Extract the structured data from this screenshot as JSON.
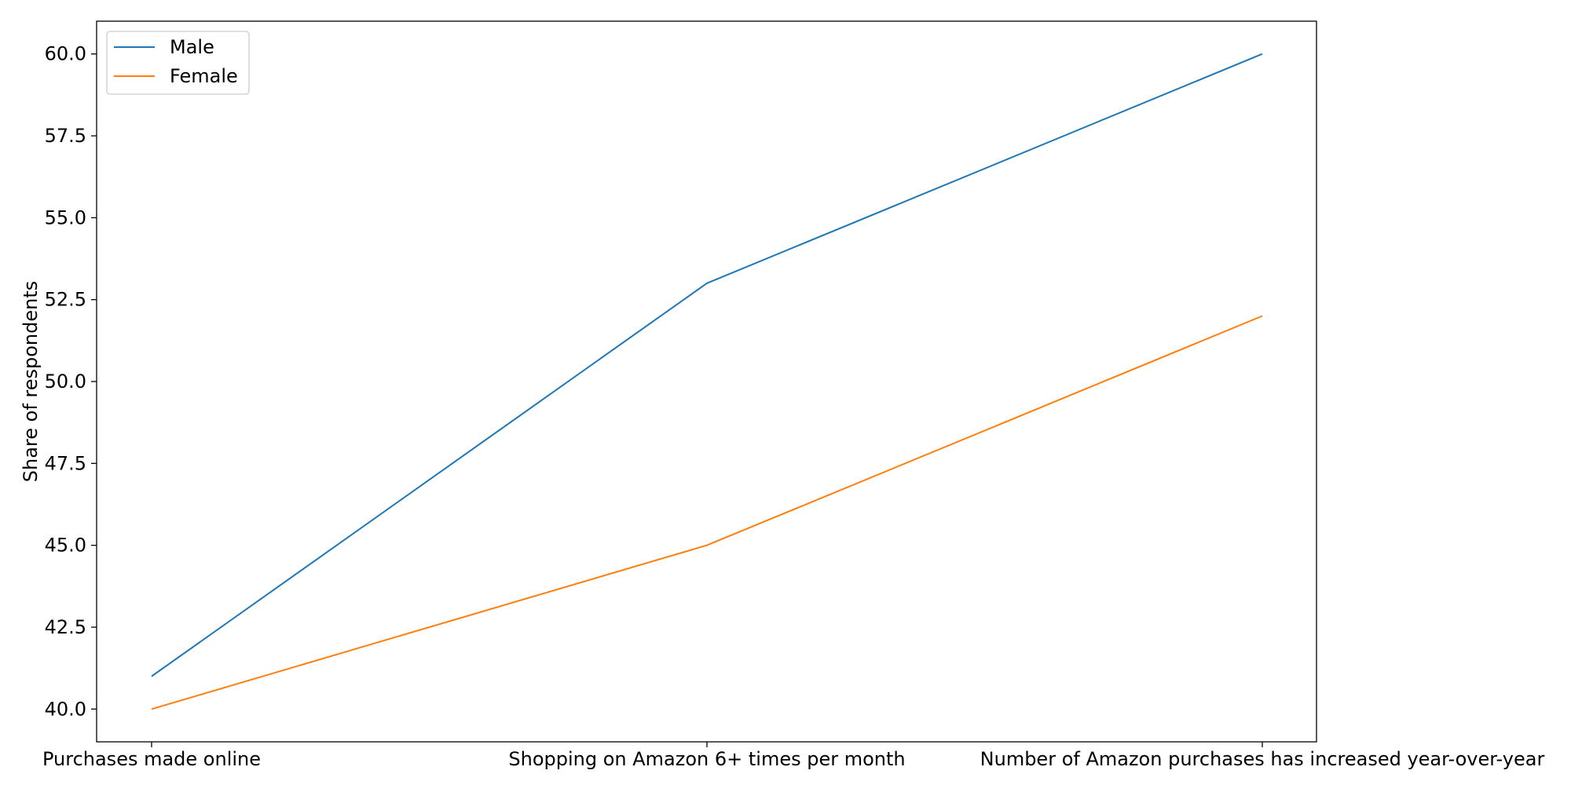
{
  "chart_data": {
    "type": "line",
    "categories": [
      "Purchases made online",
      "Shopping on Amazon 6+ times per month",
      "Number of Amazon purchases has increased year-over-year"
    ],
    "series": [
      {
        "name": "Male",
        "values": [
          41,
          53,
          60
        ],
        "color": "#1f77b4"
      },
      {
        "name": "Female",
        "values": [
          40,
          45,
          52
        ],
        "color": "#ff7f0e"
      }
    ],
    "xlabel": "",
    "ylabel": "Share of respondents",
    "ylim": [
      39.0,
      61.0
    ],
    "yticks": [
      40.0,
      42.5,
      45.0,
      47.5,
      50.0,
      52.5,
      55.0,
      57.5,
      60.0
    ],
    "ytick_labels": [
      "40.0",
      "42.5",
      "45.0",
      "47.5",
      "50.0",
      "52.5",
      "55.0",
      "57.5",
      "60.0"
    ],
    "grid": false,
    "legend_position": "top-left"
  }
}
